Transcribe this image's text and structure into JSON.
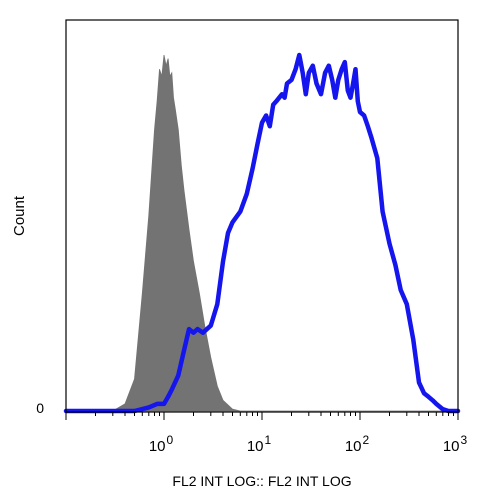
{
  "chart_data": {
    "type": "area",
    "title": "",
    "xlabel": "FL2 INT LOG:: FL2 INT LOG",
    "ylabel": "Count",
    "xscale": "log",
    "xlim": [
      0.1,
      1000
    ],
    "ylim": [
      0,
      1
    ],
    "grid": false,
    "legend": "none",
    "x_tick_labels": [
      {
        "value": 1,
        "base": "10",
        "exp": "0"
      },
      {
        "value": 10,
        "base": "10",
        "exp": "1"
      },
      {
        "value": 100,
        "base": "10",
        "exp": "2"
      },
      {
        "value": 1000,
        "base": "10",
        "exp": "3"
      }
    ],
    "y_tick_labels": [
      {
        "value": 0,
        "label": "0"
      }
    ],
    "series": [
      {
        "color": "#737373",
        "style": "filled",
        "x": [
          0.1,
          0.3,
          0.4,
          0.5,
          0.6,
          0.7,
          0.8,
          0.85,
          0.9,
          0.95,
          1.0,
          1.05,
          1.1,
          1.15,
          1.2,
          1.25,
          1.3,
          1.4,
          1.5,
          1.6,
          1.8,
          2.0,
          2.3,
          2.6,
          3.0,
          3.5,
          4.0,
          5.0,
          6.0,
          1000
        ],
        "y": [
          0,
          0,
          0.02,
          0.09,
          0.33,
          0.55,
          0.79,
          0.87,
          0.96,
          0.94,
          1.0,
          0.97,
          0.99,
          0.94,
          0.95,
          0.88,
          0.85,
          0.79,
          0.69,
          0.62,
          0.51,
          0.42,
          0.33,
          0.24,
          0.15,
          0.07,
          0.03,
          0.005,
          0,
          0
        ]
      },
      {
        "color": "#1515ee",
        "style": "line",
        "x": [
          0.1,
          0.3,
          0.5,
          0.7,
          0.85,
          1.0,
          1.1,
          1.2,
          1.4,
          1.6,
          1.8,
          2.0,
          2.2,
          2.5,
          3.0,
          3.5,
          4.0,
          4.5,
          5.0,
          6.0,
          7.0,
          8.0,
          9.0,
          10,
          11,
          12,
          13,
          14,
          16,
          17,
          18,
          20,
          22,
          24,
          26,
          28,
          30,
          33,
          36,
          40,
          44,
          48,
          52,
          56,
          60,
          65,
          70,
          75,
          80,
          85,
          90,
          95,
          100,
          110,
          120,
          130,
          150,
          170,
          200,
          230,
          260,
          300,
          350,
          400,
          450,
          500,
          550,
          600,
          700,
          800,
          900,
          1000
        ],
        "y": [
          0.0,
          0.0,
          0.0,
          0.01,
          0.02,
          0.02,
          0.04,
          0.06,
          0.1,
          0.17,
          0.23,
          0.22,
          0.23,
          0.22,
          0.24,
          0.3,
          0.42,
          0.5,
          0.53,
          0.56,
          0.61,
          0.68,
          0.75,
          0.81,
          0.83,
          0.8,
          0.86,
          0.87,
          0.89,
          0.88,
          0.92,
          0.93,
          0.96,
          1.0,
          0.95,
          0.89,
          0.95,
          0.97,
          0.92,
          0.89,
          0.95,
          0.97,
          0.93,
          0.88,
          0.93,
          0.96,
          0.98,
          0.9,
          0.88,
          0.92,
          0.96,
          0.87,
          0.84,
          0.83,
          0.8,
          0.77,
          0.71,
          0.56,
          0.47,
          0.41,
          0.34,
          0.3,
          0.2,
          0.08,
          0.05,
          0.04,
          0.03,
          0.02,
          0.005,
          0,
          0,
          0
        ]
      }
    ]
  }
}
